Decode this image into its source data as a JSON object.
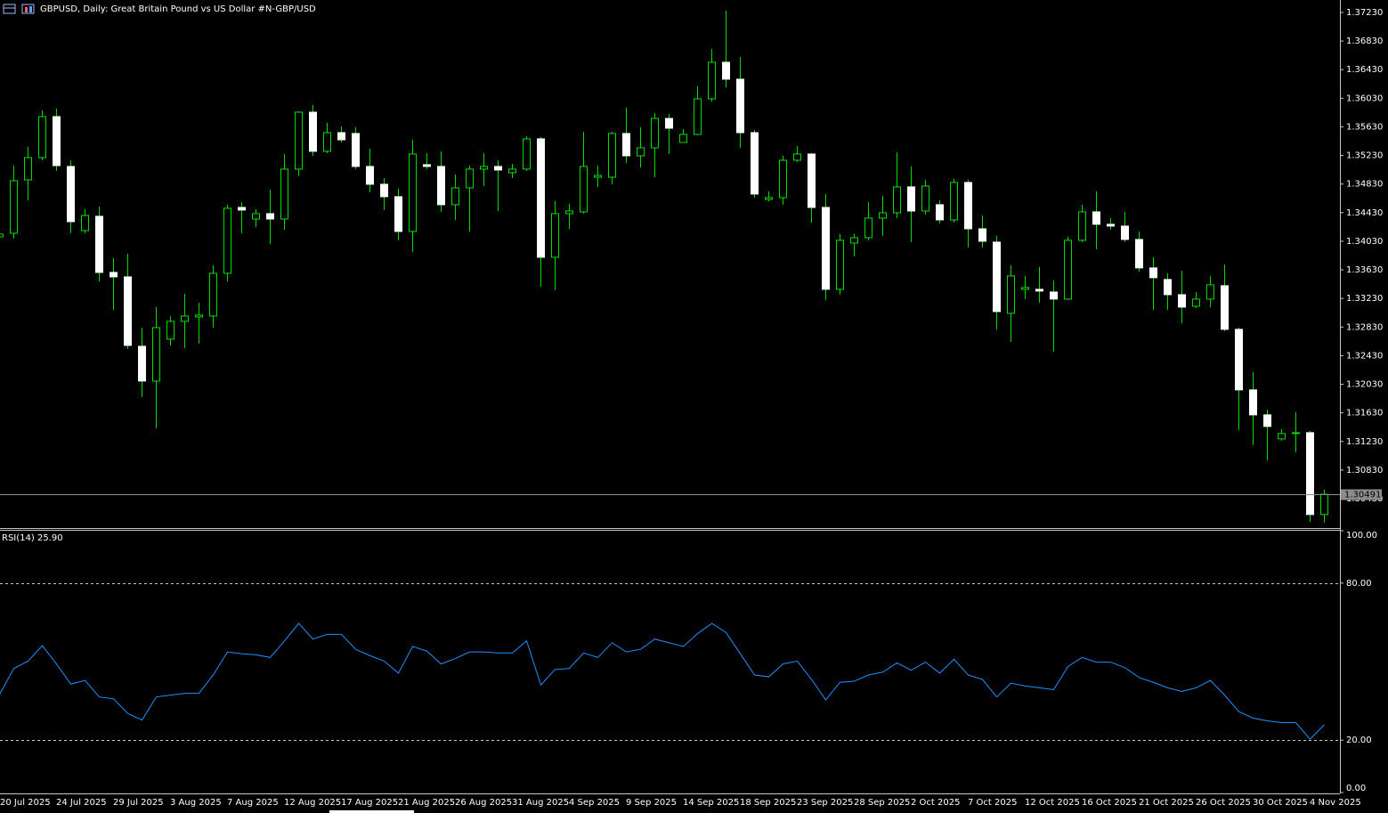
{
  "chart_data": [
    {
      "type": "candlestick",
      "title": "GBPUSD, Daily:  Great Britain Pound vs US Dollar #N-GBP/USD",
      "categories": [
        "20 Jul 2025",
        null,
        null,
        null,
        "24 Jul 2025",
        null,
        null,
        null,
        "29 Jul 2025",
        null,
        null,
        null,
        "3 Aug 2025",
        null,
        null,
        null,
        "7 Aug 2025",
        null,
        null,
        null,
        "12 Aug 2025",
        null,
        null,
        null,
        "17 Aug 2025",
        null,
        null,
        null,
        "21 Aug 2025",
        null,
        null,
        null,
        "26 Aug 2025",
        null,
        null,
        null,
        "31 Aug 2025",
        null,
        null,
        null,
        "4 Sep 2025",
        null,
        null,
        null,
        "9 Sep 2025",
        null,
        null,
        null,
        "14 Sep 2025",
        null,
        null,
        null,
        "18 Sep 2025",
        null,
        null,
        null,
        "23 Sep 2025",
        null,
        null,
        null,
        "28 Sep 2025",
        null,
        null,
        null,
        "2 Oct 2025",
        null,
        null,
        null,
        "7 Oct 2025",
        null,
        null,
        null,
        "12 Oct 2025",
        null,
        null,
        null,
        "16 Oct 2025",
        null,
        null,
        null,
        "21 Oct 2025",
        null,
        null,
        null,
        "26 Oct 2025",
        null,
        null,
        null,
        "30 Oct 2025",
        null,
        null,
        null,
        "4 Nov 2025",
        null
      ],
      "open": [
        1.34092,
        1.34142,
        1.34889,
        1.352,
        1.35773,
        1.35076,
        1.34179,
        1.34379,
        1.33594,
        1.33532,
        1.32561,
        1.32075,
        1.32661,
        1.3291,
        1.32972,
        1.32984,
        1.33582,
        1.34503,
        1.34341,
        1.34416,
        1.34341,
        1.35039,
        1.35835,
        1.35288,
        1.35549,
        1.35537,
        1.35076,
        1.34827,
        1.34653,
        1.34167,
        1.35101,
        1.35076,
        1.34541,
        1.34777,
        1.35039,
        1.35076,
        1.34989,
        1.35039,
        1.35462,
        1.33806,
        1.34416,
        1.34441,
        1.34926,
        1.34926,
        1.35537,
        1.35225,
        1.35337,
        1.35748,
        1.35412,
        1.35524,
        1.36022,
        1.36533,
        1.36296,
        1.35549,
        1.34615,
        1.3464,
        1.35163,
        1.3525,
        1.34503,
        1.33358,
        1.34005,
        1.3408,
        1.34354,
        1.34428,
        1.3479,
        1.34453,
        1.34541,
        1.34329,
        1.34852,
        1.34204,
        1.34018,
        1.33022,
        1.33358,
        1.33358,
        1.3332,
        1.33221,
        1.34043,
        1.34441,
        1.34267,
        1.34242,
        1.34055,
        1.33657,
        1.33495,
        1.33283,
        1.33121,
        1.33221,
        1.33408,
        1.32798,
        1.31951,
        1.31602,
        1.31266,
        1.31341,
        1.31353,
        1.30208
      ],
      "high": [
        1.34192,
        1.35088,
        1.3535,
        1.3586,
        1.35885,
        1.35163,
        1.34478,
        1.34516,
        1.33794,
        1.33856,
        1.32822,
        1.33109,
        1.32984,
        1.33296,
        1.33171,
        1.33694,
        1.34541,
        1.34578,
        1.34478,
        1.34752,
        1.3525,
        1.35848,
        1.35935,
        1.35686,
        1.35636,
        1.35624,
        1.35325,
        1.34914,
        1.34765,
        1.35449,
        1.35263,
        1.35288,
        1.34964,
        1.35088,
        1.35263,
        1.35163,
        1.35113,
        1.35499,
        1.35487,
        1.3459,
        1.34553,
        1.35561,
        1.35088,
        1.35561,
        1.35898,
        1.35624,
        1.35823,
        1.3581,
        1.35599,
        1.36196,
        1.36719,
        1.37255,
        1.36607,
        1.35586,
        1.34727,
        1.35225,
        1.35362,
        1.35263,
        1.3469,
        1.3413,
        1.3413,
        1.34578,
        1.34665,
        1.35275,
        1.35076,
        1.34889,
        1.34603,
        1.34902,
        1.34889,
        1.34391,
        1.34105,
        1.33694,
        1.33545,
        1.33669,
        1.33482,
        1.34092,
        1.34541,
        1.34727,
        1.34354,
        1.34441,
        1.34167,
        1.33806,
        1.33582,
        1.33619,
        1.3332,
        1.33545,
        1.33706,
        1.32822,
        1.322,
        1.31677,
        1.31403,
        1.3164,
        1.31378,
        1.30557
      ],
      "low": [
        1.34067,
        1.34067,
        1.34603,
        1.35163,
        1.35014,
        1.34142,
        1.34142,
        1.3347,
        1.33071,
        1.32524,
        1.31851,
        1.31416,
        1.32573,
        1.32536,
        1.32598,
        1.32822,
        1.3347,
        1.34142,
        1.34229,
        1.33993,
        1.34192,
        1.34939,
        1.35225,
        1.35263,
        1.35412,
        1.35039,
        1.34715,
        1.34466,
        1.34043,
        1.33881,
        1.35039,
        1.34441,
        1.34329,
        1.34167,
        1.34802,
        1.34453,
        1.34914,
        1.35014,
        1.33395,
        1.33345,
        1.34204,
        1.34416,
        1.3479,
        1.34827,
        1.35126,
        1.35063,
        1.34926,
        1.3525,
        1.35412,
        1.35512,
        1.35985,
        1.36184,
        1.35337,
        1.3464,
        1.3459,
        1.34541,
        1.35138,
        1.34292,
        1.33208,
        1.33283,
        1.33818,
        1.34043,
        1.34105,
        1.34354,
        1.34018,
        1.34404,
        1.34279,
        1.34292,
        1.33943,
        1.33943,
        1.32798,
        1.32623,
        1.33221,
        1.33171,
        1.32486,
        1.33208,
        1.34018,
        1.33918,
        1.34192,
        1.34018,
        1.33607,
        1.33071,
        1.33071,
        1.32885,
        1.33096,
        1.33109,
        1.32773,
        1.31391,
        1.31179,
        1.30967,
        1.31241,
        1.31079,
        1.30108,
        1.30096
      ],
      "close": [
        1.3413,
        1.34877,
        1.352,
        1.35773,
        1.35088,
        1.34304,
        1.34391,
        1.33594,
        1.33532,
        1.32573,
        1.32075,
        1.32822,
        1.3291,
        1.32984,
        1.32997,
        1.33582,
        1.34491,
        1.34466,
        1.34416,
        1.34341,
        1.35039,
        1.35835,
        1.35288,
        1.35549,
        1.35449,
        1.35076,
        1.34827,
        1.34653,
        1.34167,
        1.3525,
        1.35076,
        1.34541,
        1.34777,
        1.35039,
        1.35076,
        1.35026,
        1.35039,
        1.35462,
        1.33806,
        1.34416,
        1.34453,
        1.35076,
        1.34951,
        1.35537,
        1.35225,
        1.35337,
        1.35748,
        1.35611,
        1.35524,
        1.36022,
        1.36533,
        1.36296,
        1.35549,
        1.3469,
        1.3464,
        1.35163,
        1.3525,
        1.34503,
        1.33358,
        1.34043,
        1.3408,
        1.34354,
        1.34428,
        1.3479,
        1.34453,
        1.34802,
        1.34329,
        1.34852,
        1.34204,
        1.3403,
        1.33047,
        1.33545,
        1.33383,
        1.33333,
        1.33221,
        1.34043,
        1.34441,
        1.34267,
        1.34242,
        1.34055,
        1.33657,
        1.3352,
        1.33283,
        1.33109,
        1.33221,
        1.3342,
        1.32798,
        1.31951,
        1.31602,
        1.3144,
        1.31341,
        1.31353,
        1.30208,
        1.30491
      ],
      "up_color": "#00e000",
      "down_color": "#ffffff",
      "ylim": [
        1.30019,
        1.37404
      ],
      "yticks": [
        {
          "value": 1.3723,
          "label": "1.37230"
        },
        {
          "value": 1.3683,
          "label": "1.36830"
        },
        {
          "value": 1.3643,
          "label": "1.36430"
        },
        {
          "value": 1.3603,
          "label": "1.36030"
        },
        {
          "value": 1.3563,
          "label": "1.35630"
        },
        {
          "value": 1.3523,
          "label": "1.35230"
        },
        {
          "value": 1.3483,
          "label": "1.34830"
        },
        {
          "value": 1.3443,
          "label": "1.34430"
        },
        {
          "value": 1.3403,
          "label": "1.34030"
        },
        {
          "value": 1.3363,
          "label": "1.33630"
        },
        {
          "value": 1.3323,
          "label": "1.33230"
        },
        {
          "value": 1.3283,
          "label": "1.32830"
        },
        {
          "value": 1.3243,
          "label": "1.32430"
        },
        {
          "value": 1.3203,
          "label": "1.32030"
        },
        {
          "value": 1.3163,
          "label": "1.31630"
        },
        {
          "value": 1.3123,
          "label": "1.31230"
        },
        {
          "value": 1.3083,
          "label": "1.30830"
        },
        {
          "value": 1.3043,
          "label": "1.30430"
        }
      ],
      "current_price": 1.30491
    },
    {
      "type": "line",
      "title": "RSI(14) 25.90",
      "values": [
        37.5,
        47.4,
        50.2,
        56.1,
        49.1,
        41.4,
        42.8,
        36.5,
        35.8,
        30.2,
        27.7,
        36.5,
        37.2,
        37.9,
        37.9,
        44.9,
        53.7,
        53.0,
        52.6,
        51.6,
        57.9,
        64.6,
        58.6,
        60.4,
        60.4,
        54.7,
        52.3,
        50.2,
        45.6,
        55.8,
        54.0,
        49.1,
        51.2,
        53.7,
        53.7,
        53.3,
        53.3,
        57.9,
        41.1,
        47.0,
        47.4,
        53.3,
        51.6,
        57.2,
        53.7,
        54.7,
        58.6,
        57.2,
        55.8,
        60.7,
        64.6,
        61.1,
        53.0,
        44.9,
        44.2,
        49.1,
        50.2,
        43.2,
        35.4,
        42.1,
        42.5,
        44.9,
        46.0,
        49.5,
        46.7,
        49.8,
        45.6,
        50.9,
        44.9,
        43.2,
        36.5,
        41.8,
        40.7,
        40.0,
        39.3,
        48.1,
        51.6,
        49.8,
        49.8,
        47.7,
        43.9,
        42.1,
        40.0,
        38.6,
        40.0,
        42.8,
        37.2,
        30.9,
        28.4,
        27.4,
        26.7,
        26.7,
        20.4,
        25.9
      ],
      "color": "#1e90ff",
      "ylim": [
        0,
        100
      ],
      "yticks": [
        {
          "value": 100,
          "label": "100.00"
        },
        {
          "value": 80,
          "label": "80.00"
        },
        {
          "value": 20,
          "label": "20.00"
        },
        {
          "value": 0,
          "label": "0.00"
        }
      ]
    }
  ]
}
